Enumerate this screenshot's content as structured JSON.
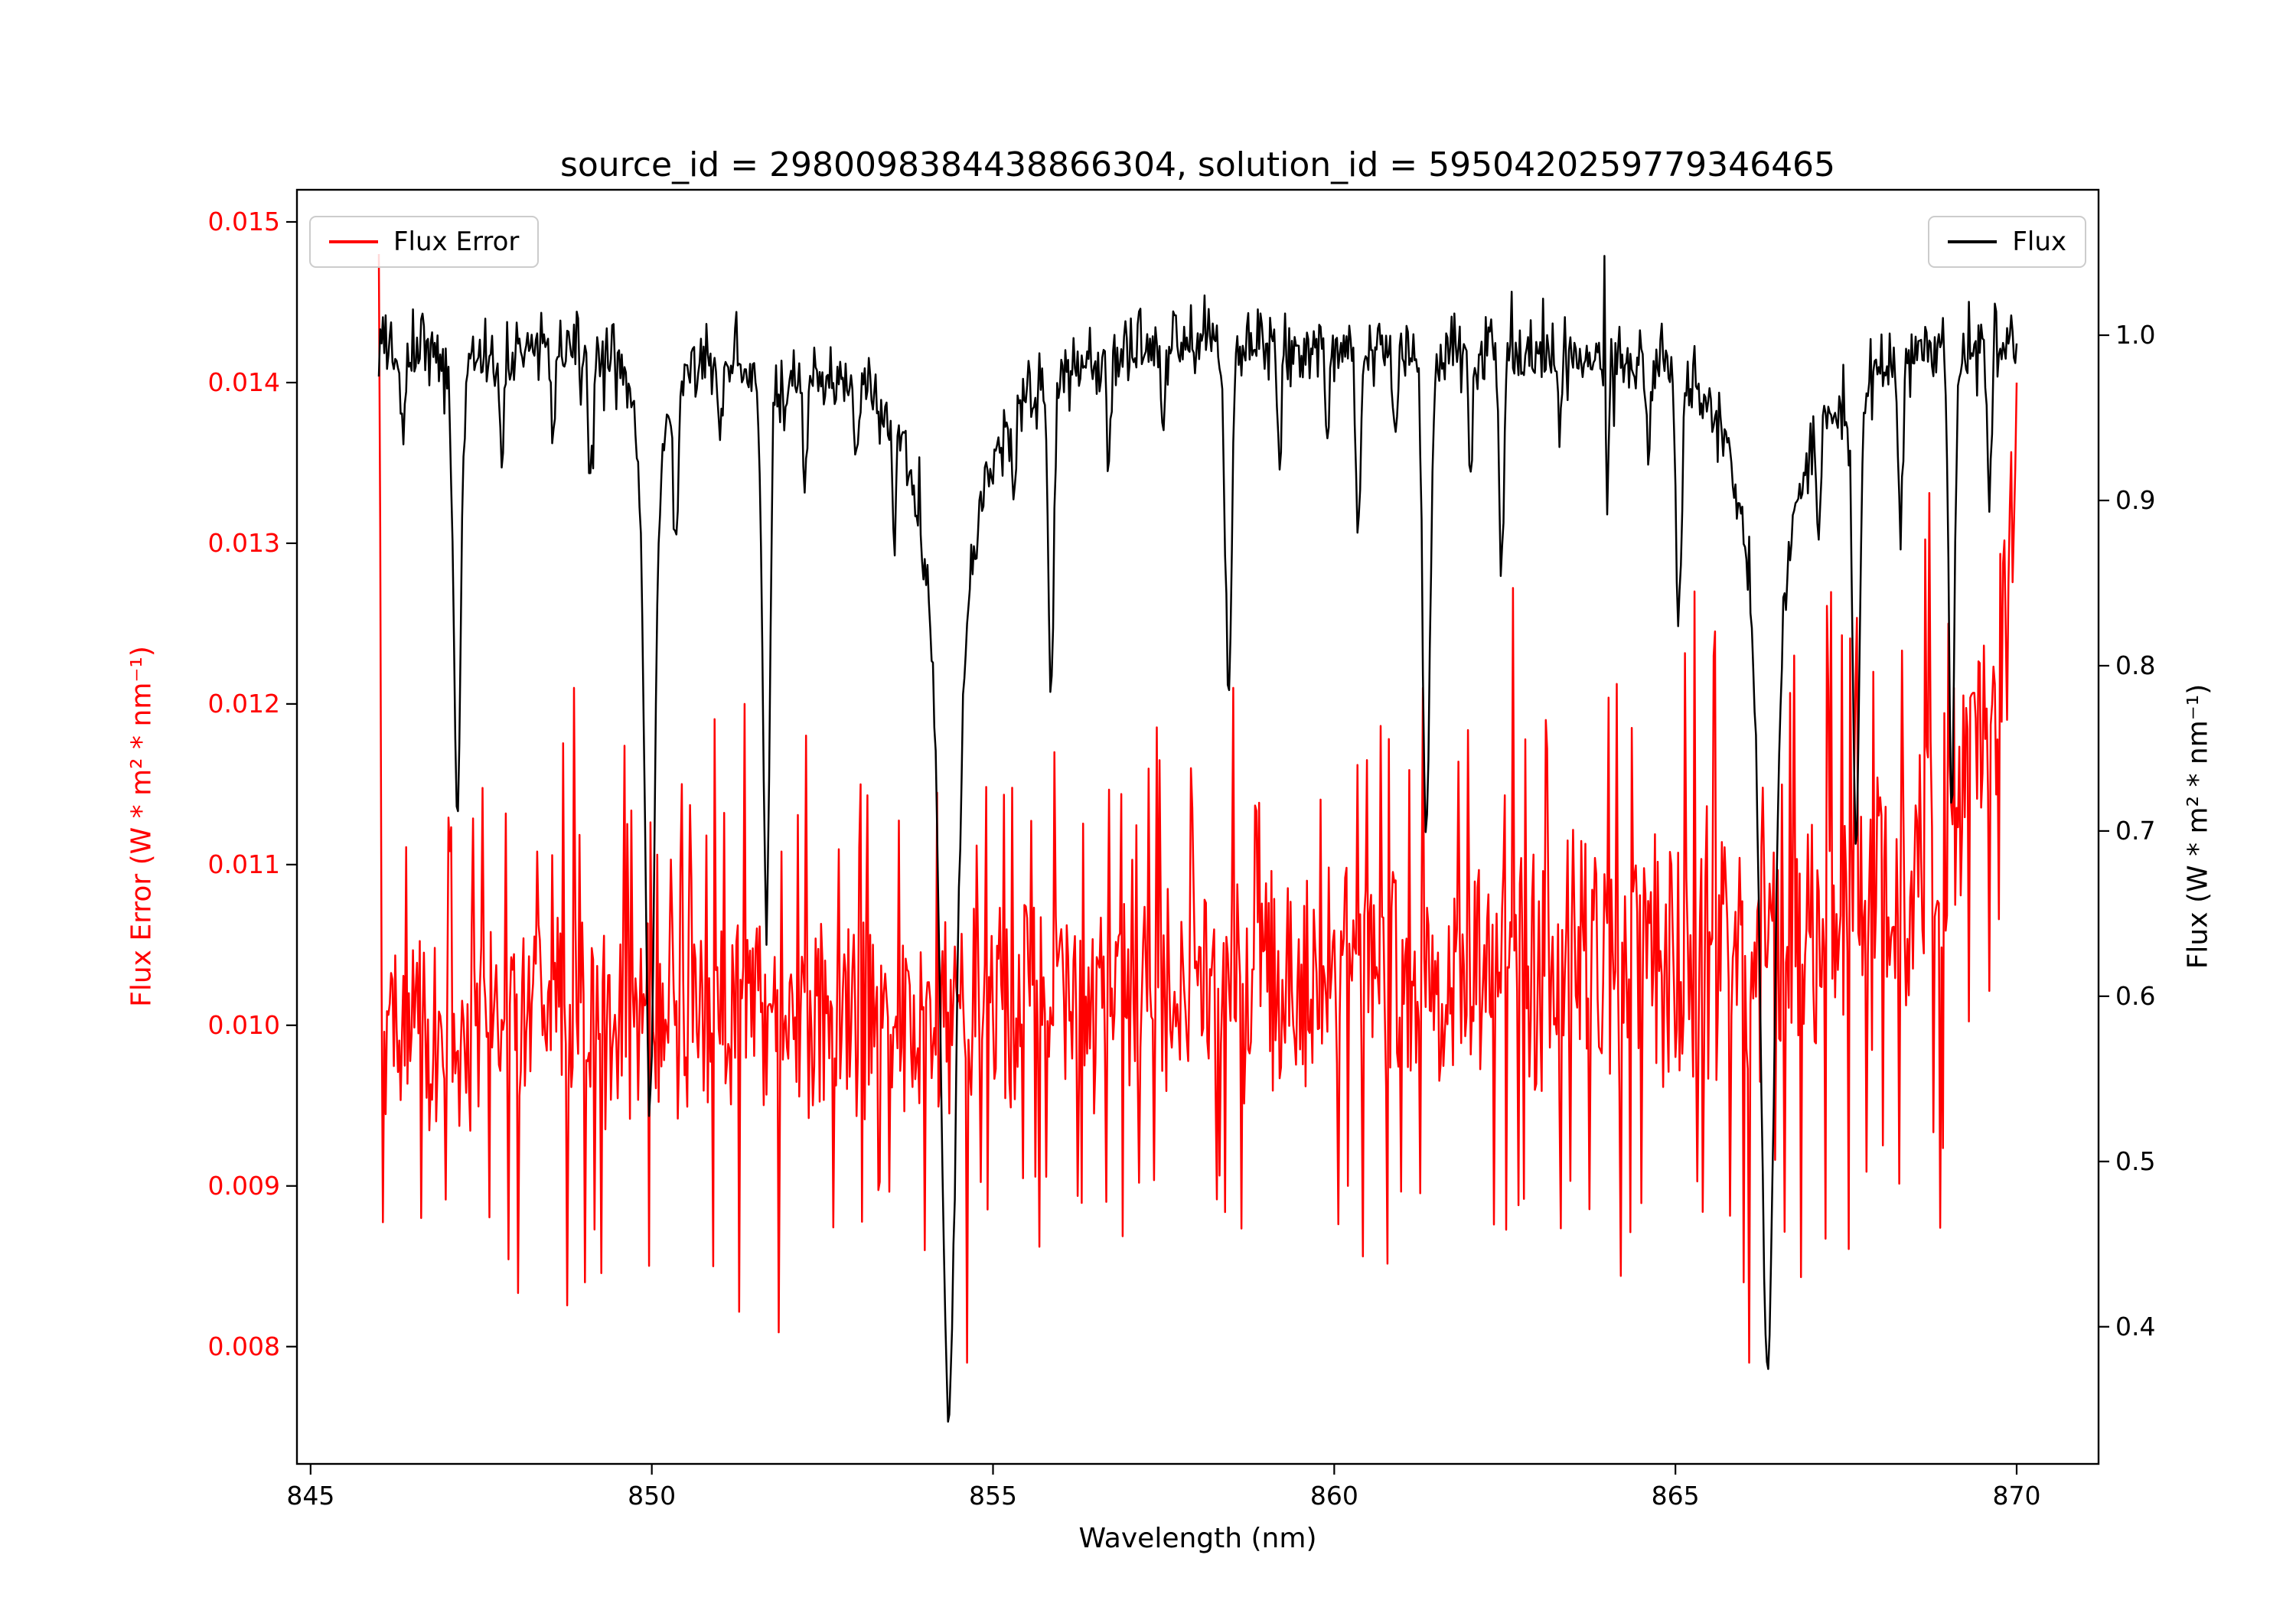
{
  "colors": {
    "flux_error": "#ff0000",
    "flux": "#000000",
    "background": "#ffffff",
    "axes": "#000000",
    "legend_border": "#cccccc"
  },
  "chart_data": {
    "type": "line",
    "title": "source_id = 2980098384438866304, solution_id = 5950420259779346465",
    "xlabel": "Wavelength (nm)",
    "ylabel_left": "Flux Error (W * m² * nm⁻¹)",
    "ylabel_right": "Flux (W * m² * nm⁻¹)",
    "grid": false,
    "xlim": [
      844.8,
      871.2
    ],
    "x_ticks": [
      845,
      850,
      855,
      860,
      865,
      870
    ],
    "x_tick_labels": [
      "845",
      "850",
      "855",
      "860",
      "865",
      "870"
    ],
    "ylim_left": [
      0.00727,
      0.0152
    ],
    "y_ticks_left": [
      0.008,
      0.009,
      0.01,
      0.011,
      0.012,
      0.013,
      0.014,
      0.015
    ],
    "y_tick_labels_left": [
      "0.008",
      "0.009",
      "0.010",
      "0.011",
      "0.012",
      "0.013",
      "0.014",
      "0.015"
    ],
    "ylim_right": [
      0.317,
      1.088
    ],
    "y_ticks_right": [
      0.4,
      0.5,
      0.6,
      0.7,
      0.8,
      0.9,
      1.0
    ],
    "y_tick_labels_right": [
      "0.4",
      "0.5",
      "0.6",
      "0.7",
      "0.8",
      "0.9",
      "1.0"
    ],
    "legend": [
      {
        "label": "Flux Error",
        "color": "#ff0000",
        "position": "upper left"
      },
      {
        "label": "Flux",
        "color": "#000000",
        "position": "upper right"
      }
    ],
    "x_range_data": [
      846.0,
      870.0
    ],
    "n_points": 1201,
    "series": [
      {
        "name": "Flux Error",
        "axis": "left",
        "color": "#ff0000",
        "baseline": 0.01,
        "rise_mid": {
          "amount": 0.0004,
          "center": 858,
          "width": 2.5
        },
        "rise_late": {
          "amount": 0.0002,
          "center": 865,
          "width": 1.2
        },
        "edge_rise": {
          "amplitude": 0.0036,
          "onset": 870.2,
          "scale": 0.7
        },
        "noise_sigma": 0.00042,
        "noise_sigma_extra": 0.0002,
        "noise_sigma_center": 862,
        "spike_prob": 0.045,
        "spike_scale": 0.0011,
        "clamp": [
          0.0079,
          0.0149
        ],
        "seed": 1234,
        "explicit_points": [
          [
            846.0,
            0.0148
          ],
          [
            846.02,
            0.0131
          ],
          [
            846.62,
            0.0088
          ],
          [
            848.86,
            0.0121
          ],
          [
            849.02,
            0.0084
          ],
          [
            850.9,
            0.0085
          ],
          [
            851.36,
            0.012
          ],
          [
            853.06,
            0.0115
          ],
          [
            854.0,
            0.0086
          ],
          [
            854.62,
            0.0079
          ],
          [
            855.9,
            0.0117
          ],
          [
            857.9,
            0.0116
          ],
          [
            858.52,
            0.0121
          ],
          [
            860.2,
            0.009
          ],
          [
            861.3,
            0.0121
          ],
          [
            863.1,
            0.0119
          ],
          [
            865.28,
            0.0127
          ],
          [
            865.56,
            0.0123
          ],
          [
            866.0,
            0.0084
          ],
          [
            867.9,
            0.0122
          ],
          [
            869.0,
            0.0125
          ],
          [
            869.96,
            0.0131
          ],
          [
            870.0,
            0.014
          ]
        ]
      },
      {
        "name": "Flux",
        "axis": "right",
        "color": "#000000",
        "continuum": 0.992,
        "slow_wave_1": {
          "amp": 0.004,
          "freq": 0.55,
          "phase": 0.0
        },
        "slow_wave_2": {
          "amp": 0.003,
          "freq": 1.7,
          "phase": 1.0
        },
        "noise_sigma": 0.011,
        "spike_prob": 0.02,
        "spike_scale": 0.018,
        "clamp": [
          0.34,
          1.055
        ],
        "seed": 77,
        "absorption_lines": [
          [
            846.35,
            0.05,
            0.03,
            0
          ],
          [
            847.15,
            0.28,
            0.05,
            0.1
          ],
          [
            847.8,
            0.06,
            0.03,
            0
          ],
          [
            848.55,
            0.05,
            0.03,
            0
          ],
          [
            849.1,
            0.07,
            0.03,
            0
          ],
          [
            849.97,
            0.47,
            0.065,
            0.2
          ],
          [
            850.35,
            0.1,
            0.035,
            0
          ],
          [
            851.0,
            0.05,
            0.03,
            0
          ],
          [
            851.68,
            0.34,
            0.05,
            0.1
          ],
          [
            852.25,
            0.07,
            0.03,
            0
          ],
          [
            853.0,
            0.06,
            0.03,
            0
          ],
          [
            853.55,
            0.07,
            0.03,
            0
          ],
          [
            854.35,
            0.65,
            0.1,
            0.35
          ],
          [
            855.3,
            0.06,
            0.03,
            0
          ],
          [
            855.85,
            0.19,
            0.04,
            0
          ],
          [
            856.7,
            0.07,
            0.03,
            0
          ],
          [
            857.5,
            0.05,
            0.03,
            0
          ],
          [
            858.45,
            0.22,
            0.045,
            0
          ],
          [
            859.2,
            0.07,
            0.03,
            0
          ],
          [
            859.9,
            0.06,
            0.03,
            0
          ],
          [
            860.35,
            0.12,
            0.035,
            0
          ],
          [
            860.9,
            0.06,
            0.03,
            0
          ],
          [
            861.35,
            0.3,
            0.05,
            0.1
          ],
          [
            862.0,
            0.07,
            0.03,
            0
          ],
          [
            862.45,
            0.13,
            0.035,
            0
          ],
          [
            863.3,
            0.06,
            0.03,
            0
          ],
          [
            864.0,
            0.07,
            0.03,
            0
          ],
          [
            864.6,
            0.06,
            0.03,
            0
          ],
          [
            865.05,
            0.17,
            0.04,
            0
          ],
          [
            866.35,
            0.62,
            0.09,
            0.35
          ],
          [
            867.1,
            0.07,
            0.03,
            0
          ],
          [
            867.65,
            0.29,
            0.045,
            0.1
          ],
          [
            868.3,
            0.1,
            0.035,
            0
          ],
          [
            869.05,
            0.29,
            0.04,
            0
          ],
          [
            869.6,
            0.09,
            0.03,
            0
          ]
        ],
        "explicit_points": [
          [
            846.0,
            0.975
          ],
          [
            863.95,
            1.048
          ],
          [
            869.92,
            1.012
          ],
          [
            870.0,
            0.995
          ]
        ]
      }
    ]
  }
}
